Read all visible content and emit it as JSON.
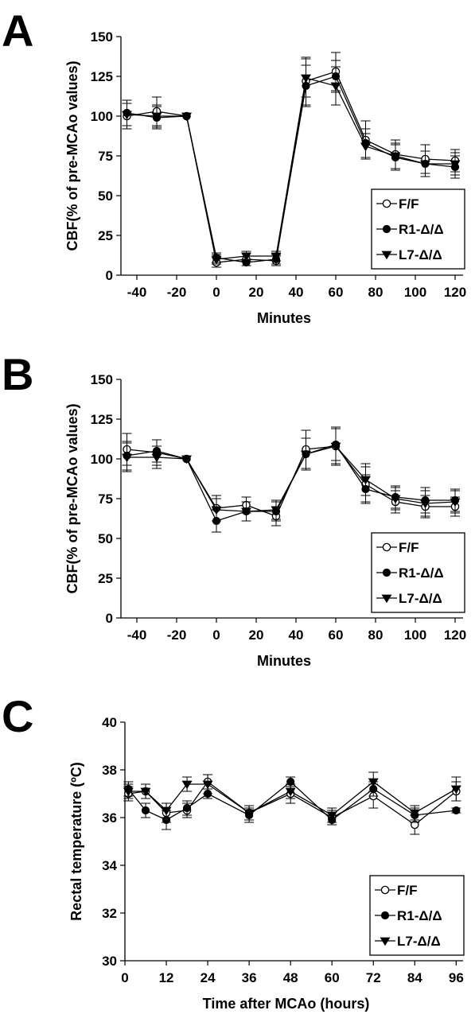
{
  "figure": {
    "panel_letters": [
      "A",
      "B",
      "C"
    ]
  },
  "chart_data": [
    {
      "panel": "A",
      "type": "line",
      "xlabel": "Minutes",
      "ylabel": "CBF(% of pre-MCAo values)",
      "xlim": [
        -48,
        124
      ],
      "ylim": [
        0,
        150
      ],
      "xticks": [
        -40,
        -20,
        0,
        20,
        40,
        60,
        80,
        100,
        120
      ],
      "yticks": [
        0,
        25,
        50,
        75,
        100,
        125,
        150
      ],
      "grid": false,
      "legend": "bottom-right",
      "x": [
        -45,
        -30,
        -15,
        0,
        15,
        30,
        45,
        60,
        75,
        90,
        105,
        120
      ],
      "series": [
        {
          "name": "F/F",
          "marker": "open-circle",
          "values": [
            100,
            103,
            100,
            8,
            10,
            9,
            122,
            128,
            85,
            76,
            73,
            72
          ],
          "errors": [
            8,
            9,
            0,
            3,
            4,
            3,
            15,
            12,
            12,
            9,
            9,
            7
          ]
        },
        {
          "name": "R1-Δ/Δ",
          "marker": "filled-circle",
          "values": [
            102,
            99,
            100,
            11,
            8,
            10,
            119,
            125,
            83,
            74,
            70,
            68
          ],
          "errors": [
            8,
            7,
            0,
            3,
            2,
            3,
            13,
            10,
            9,
            8,
            8,
            7
          ]
        },
        {
          "name": "L7-Δ/Δ",
          "marker": "filled-triangle",
          "values": [
            101,
            100,
            100,
            10,
            12,
            12,
            124,
            119,
            81,
            75,
            70,
            70
          ],
          "errors": [
            9,
            7,
            0,
            3,
            3,
            3,
            12,
            12,
            8,
            8,
            8,
            7
          ]
        }
      ]
    },
    {
      "panel": "B",
      "type": "line",
      "xlabel": "Minutes",
      "ylabel": "CBF(% of pre-MCAo values)",
      "xlim": [
        -48,
        124
      ],
      "ylim": [
        0,
        150
      ],
      "xticks": [
        -40,
        -20,
        0,
        20,
        40,
        60,
        80,
        100,
        120
      ],
      "yticks": [
        0,
        25,
        50,
        75,
        100,
        125,
        150
      ],
      "grid": false,
      "legend": "bottom-right",
      "x": [
        -45,
        -30,
        -15,
        0,
        15,
        30,
        45,
        60,
        75,
        90,
        105,
        120
      ],
      "series": [
        {
          "name": "F/F",
          "marker": "open-circle",
          "values": [
            106,
            104,
            100,
            69,
            71,
            64,
            106,
            108,
            84,
            73,
            70,
            70
          ],
          "errors": [
            10,
            8,
            0,
            8,
            5,
            6,
            12,
            11,
            11,
            7,
            7,
            6
          ]
        },
        {
          "name": "R1-Δ/Δ",
          "marker": "filled-circle",
          "values": [
            102,
            105,
            100,
            61,
            67,
            67,
            103,
            109,
            81,
            76,
            74,
            74
          ],
          "errors": [
            9,
            7,
            0,
            7,
            6,
            6,
            10,
            10,
            9,
            7,
            8,
            7
          ]
        },
        {
          "name": "L7-Δ/Δ",
          "marker": "filled-triangle",
          "values": [
            101,
            101,
            100,
            68,
            67,
            68,
            103,
            108,
            87,
            75,
            72,
            73
          ],
          "errors": [
            9,
            7,
            0,
            7,
            6,
            6,
            10,
            12,
            10,
            7,
            8,
            7
          ]
        }
      ]
    },
    {
      "panel": "C",
      "type": "line",
      "xlabel": "Time after MCAo (hours)",
      "ylabel": "Rectal temperature (ºC)",
      "xlim": [
        0,
        98
      ],
      "ylim": [
        30,
        40
      ],
      "xticks": [
        0,
        12,
        24,
        36,
        48,
        60,
        72,
        84,
        96
      ],
      "yticks": [
        30,
        32,
        34,
        36,
        38,
        40
      ],
      "grid": false,
      "legend": "bottom-right",
      "x": [
        1,
        6,
        12,
        18,
        24,
        36,
        48,
        60,
        72,
        84,
        96
      ],
      "series": [
        {
          "name": "F/F",
          "marker": "open-circle",
          "values": [
            37.0,
            37.1,
            36.2,
            36.3,
            37.5,
            36.2,
            37.0,
            36.0,
            36.9,
            35.7,
            37.1
          ],
          "errors": [
            0.3,
            0.3,
            0.4,
            0.3,
            0.3,
            0.3,
            0.4,
            0.3,
            0.5,
            0.4,
            0.4
          ]
        },
        {
          "name": "R1-Δ/Δ",
          "marker": "filled-circle",
          "values": [
            37.2,
            36.3,
            35.9,
            36.4,
            37.0,
            36.1,
            37.5,
            35.9,
            37.2,
            36.1,
            36.3
          ],
          "errors": [
            0.3,
            0.3,
            0.4,
            0.3,
            0.2,
            0.3,
            0.2,
            0.2,
            0.3,
            0.3,
            0.1
          ]
        },
        {
          "name": "L7-Δ/Δ",
          "marker": "filled-triangle",
          "values": [
            37.1,
            37.1,
            36.3,
            37.4,
            37.4,
            36.2,
            37.1,
            36.1,
            37.5,
            36.2,
            37.2
          ],
          "errors": [
            0.3,
            0.3,
            0.3,
            0.3,
            0.4,
            0.3,
            0.3,
            0.3,
            0.4,
            0.3,
            0.5
          ]
        }
      ]
    }
  ]
}
